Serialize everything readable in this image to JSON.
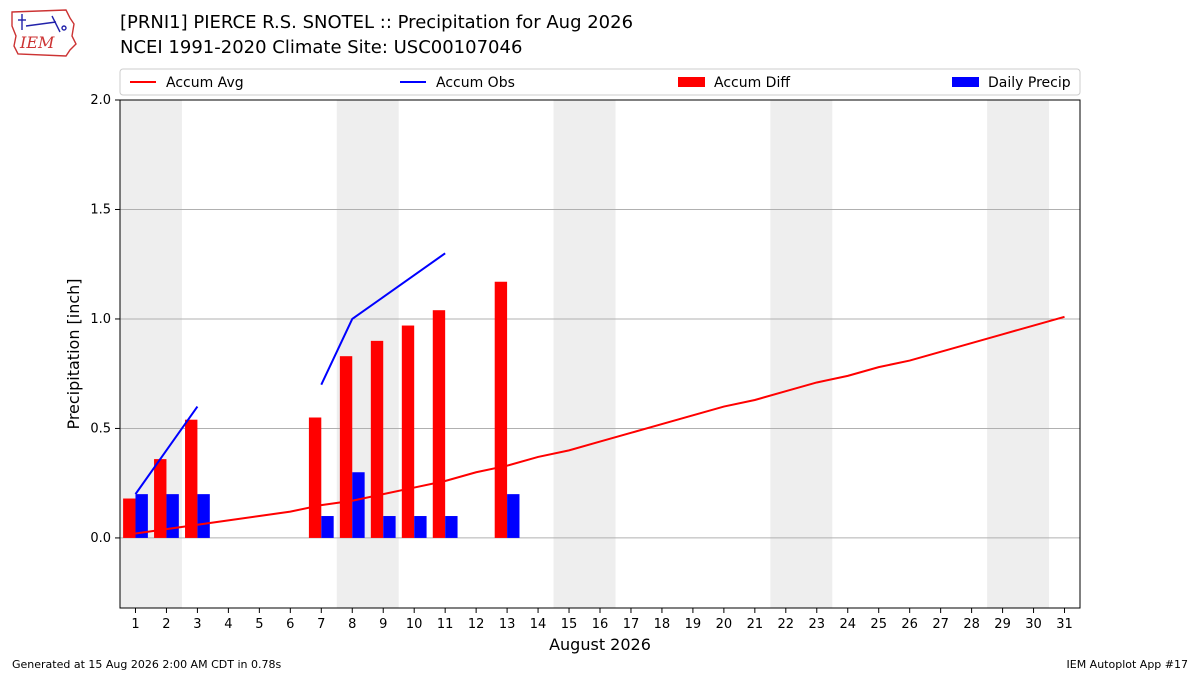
{
  "header": {
    "title_line1": "[PRNI1] PIERCE R.S. SNOTEL :: Precipitation for Aug 2026",
    "title_line2": "NCEI 1991-2020 Climate Site: USC00107046",
    "logo_text": "IEM"
  },
  "footer": {
    "generated": "Generated at 15 Aug 2026 2:00 AM CDT in 0.78s",
    "app": "IEM Autoplot App #17"
  },
  "colors": {
    "avg": "#ff0000",
    "obs": "#0000ff",
    "diff": "#ff0000",
    "daily": "#0000ff",
    "weekend_band": "#eeeeee",
    "grid": "#b0b0b0"
  },
  "chart_data": {
    "type": "bar",
    "xlabel": "August 2026",
    "ylabel": "Precipitation [inch]",
    "ylim": [
      -0.32,
      2.0
    ],
    "xlim": [
      0.5,
      31.5
    ],
    "yticks": [
      0.0,
      0.5,
      1.0,
      1.5,
      2.0
    ],
    "ytick_labels": [
      "0.0",
      "0.5",
      "1.0",
      "1.5",
      "2.0"
    ],
    "days": [
      1,
      2,
      3,
      4,
      5,
      6,
      7,
      8,
      9,
      10,
      11,
      12,
      13,
      14,
      15,
      16,
      17,
      18,
      19,
      20,
      21,
      22,
      23,
      24,
      25,
      26,
      27,
      28,
      29,
      30,
      31
    ],
    "grid": "horizontal",
    "legend_position": "top",
    "legend": [
      "Accum Avg",
      "Accum Obs",
      "Accum Diff",
      "Daily Precip"
    ],
    "shaded_day_ranges": [
      [
        1,
        2
      ],
      [
        8,
        9
      ],
      [
        15,
        16
      ],
      [
        22,
        23
      ],
      [
        29,
        30
      ]
    ],
    "series": [
      {
        "name": "Accum Avg",
        "kind": "line",
        "x": [
          1,
          2,
          3,
          4,
          5,
          6,
          7,
          8,
          9,
          10,
          11,
          12,
          13,
          14,
          15,
          16,
          17,
          18,
          19,
          20,
          21,
          22,
          23,
          24,
          25,
          26,
          27,
          28,
          29,
          30,
          31
        ],
        "values": [
          0.02,
          0.04,
          0.06,
          0.08,
          0.1,
          0.12,
          0.15,
          0.17,
          0.2,
          0.23,
          0.26,
          0.3,
          0.33,
          0.37,
          0.4,
          0.44,
          0.48,
          0.52,
          0.56,
          0.6,
          0.63,
          0.67,
          0.71,
          0.74,
          0.78,
          0.81,
          0.85,
          0.89,
          0.93,
          0.97,
          1.01
        ]
      },
      {
        "name": "Accum Obs",
        "kind": "line",
        "segments": [
          {
            "x": [
              1,
              2,
              3
            ],
            "values": [
              0.2,
              0.4,
              0.6
            ]
          },
          {
            "x": [
              7,
              8,
              9,
              10,
              11
            ],
            "values": [
              0.7,
              1.0,
              1.1,
              1.2,
              1.3
            ]
          }
        ]
      },
      {
        "name": "Accum Diff",
        "kind": "bar",
        "x": [
          1,
          2,
          3,
          7,
          8,
          9,
          10,
          11,
          13
        ],
        "values": [
          0.18,
          0.36,
          0.54,
          0.55,
          0.83,
          0.9,
          0.97,
          1.04,
          1.17
        ]
      },
      {
        "name": "Daily Precip",
        "kind": "bar",
        "x": [
          1,
          2,
          3,
          7,
          8,
          9,
          10,
          11,
          13
        ],
        "values": [
          0.2,
          0.2,
          0.2,
          0.1,
          0.3,
          0.1,
          0.1,
          0.1,
          0.2
        ]
      }
    ]
  }
}
